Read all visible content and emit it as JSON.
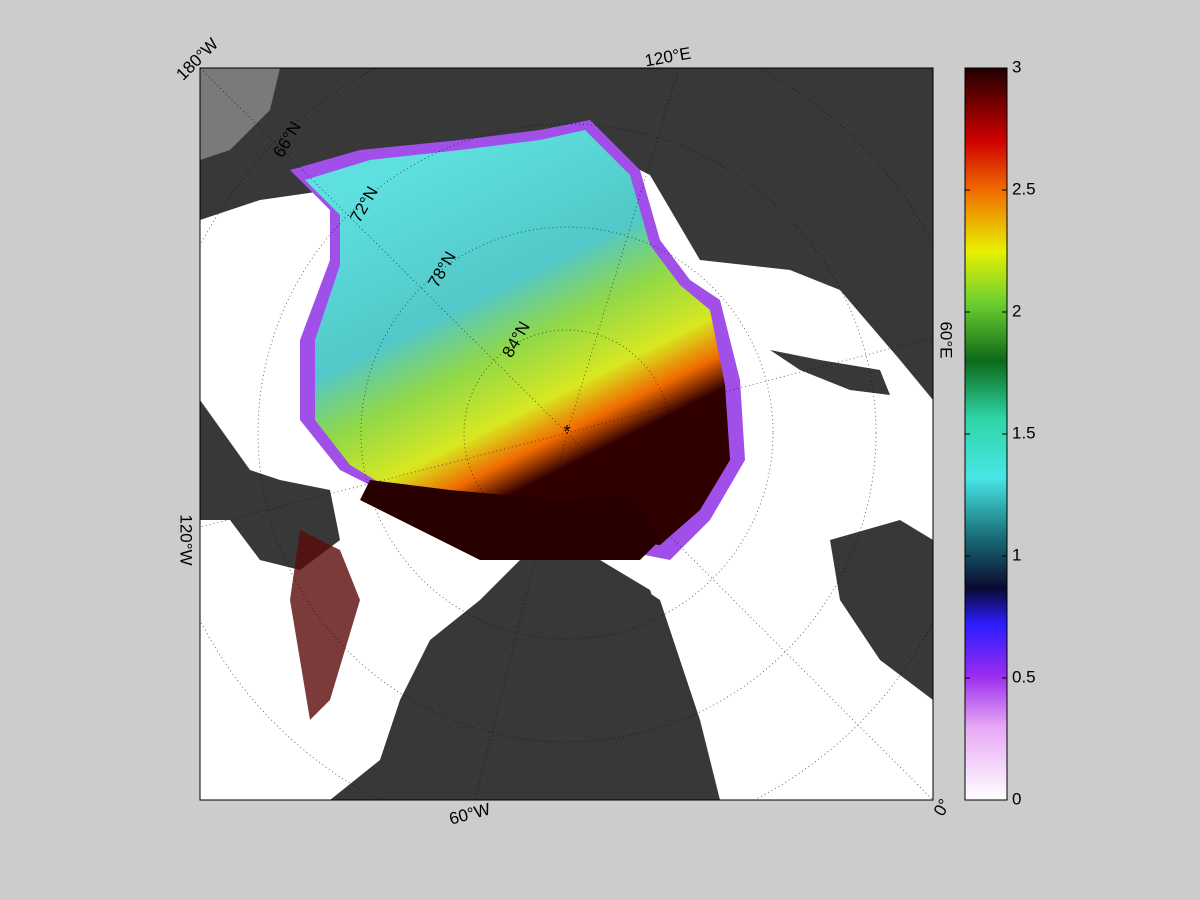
{
  "map": {
    "longitude_labels": [
      "180°W",
      "120°E",
      "60°E",
      "0°",
      "60°W",
      "120°W"
    ],
    "latitude_labels": [
      "66°N",
      "72°N",
      "78°N",
      "84°N"
    ],
    "colorbar": {
      "lim": [
        0,
        3
      ],
      "ticks": [
        0,
        0.5,
        1,
        1.5,
        2,
        2.5,
        3
      ]
    }
  }
}
